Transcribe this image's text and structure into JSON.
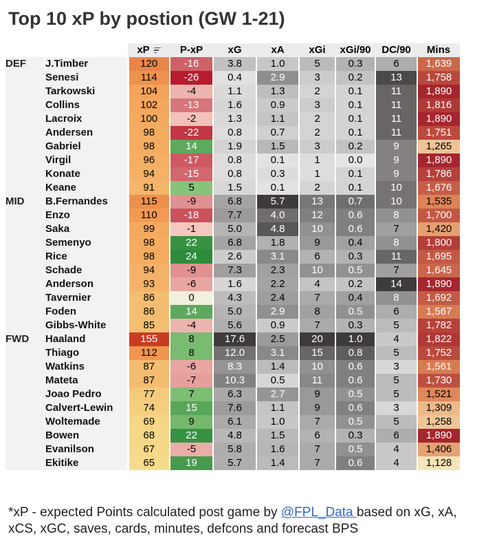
{
  "title": "Top 10 xP by postion (GW 1-21)",
  "chart_data": {
    "type": "table",
    "title": "Top 10 xP by postion (GW 1-21)",
    "columns": [
      "xP",
      "P-xP",
      "xG",
      "xA",
      "xGi",
      "xGi/90",
      "DC/90",
      "Mins"
    ],
    "sort_column": "xP",
    "groups": [
      {
        "position": "DEF",
        "players": [
          {
            "name": "J.Timber",
            "xp": "120",
            "pxp": "-16",
            "xg": "3.8",
            "xa": "1.0",
            "xgi": "5",
            "xgi90": "0.3",
            "dc90": "6",
            "mins": "1,639"
          },
          {
            "name": "Senesi",
            "xp": "114",
            "pxp": "-26",
            "xg": "0.4",
            "xa": "2.9",
            "xgi": "3",
            "xgi90": "0.2",
            "dc90": "13",
            "mins": "1,758"
          },
          {
            "name": "Tarkowski",
            "xp": "104",
            "pxp": "-4",
            "xg": "1.1",
            "xa": "1.3",
            "xgi": "2",
            "xgi90": "0.1",
            "dc90": "11",
            "mins": "1,890"
          },
          {
            "name": "Collins",
            "xp": "102",
            "pxp": "-13",
            "xg": "1.6",
            "xa": "0.9",
            "xgi": "3",
            "xgi90": "0.1",
            "dc90": "11",
            "mins": "1,816"
          },
          {
            "name": "Lacroix",
            "xp": "100",
            "pxp": "-2",
            "xg": "1.3",
            "xa": "1.1",
            "xgi": "2",
            "xgi90": "0.1",
            "dc90": "11",
            "mins": "1,890"
          },
          {
            "name": "Andersen",
            "xp": "98",
            "pxp": "-22",
            "xg": "0.8",
            "xa": "0.7",
            "xgi": "2",
            "xgi90": "0.1",
            "dc90": "11",
            "mins": "1,751"
          },
          {
            "name": "Gabriel",
            "xp": "98",
            "pxp": "14",
            "xg": "1.9",
            "xa": "1.5",
            "xgi": "3",
            "xgi90": "0.2",
            "dc90": "9",
            "mins": "1,265"
          },
          {
            "name": "Virgil",
            "xp": "96",
            "pxp": "-17",
            "xg": "0.8",
            "xa": "0.1",
            "xgi": "1",
            "xgi90": "0.0",
            "dc90": "9",
            "mins": "1,890"
          },
          {
            "name": "Konate",
            "xp": "94",
            "pxp": "-15",
            "xg": "0.8",
            "xa": "0.3",
            "xgi": "1",
            "xgi90": "0.1",
            "dc90": "9",
            "mins": "1,786"
          },
          {
            "name": "Keane",
            "xp": "91",
            "pxp": "5",
            "xg": "1.5",
            "xa": "0.1",
            "xgi": "2",
            "xgi90": "0.1",
            "dc90": "10",
            "mins": "1,676"
          }
        ]
      },
      {
        "position": "MID",
        "players": [
          {
            "name": "B.Fernandes",
            "xp": "115",
            "pxp": "-9",
            "xg": "6.8",
            "xa": "5.7",
            "xgi": "13",
            "xgi90": "0.7",
            "dc90": "10",
            "mins": "1,535"
          },
          {
            "name": "Enzo",
            "xp": "110",
            "pxp": "-18",
            "xg": "7.7",
            "xa": "4.0",
            "xgi": "12",
            "xgi90": "0.6",
            "dc90": "8",
            "mins": "1,700"
          },
          {
            "name": "Saka",
            "xp": "99",
            "pxp": "-1",
            "xg": "5.0",
            "xa": "4.8",
            "xgi": "10",
            "xgi90": "0.6",
            "dc90": "7",
            "mins": "1,420"
          },
          {
            "name": "Semenyo",
            "xp": "98",
            "pxp": "22",
            "xg": "6.8",
            "xa": "1.8",
            "xgi": "9",
            "xgi90": "0.4",
            "dc90": "8",
            "mins": "1,800"
          },
          {
            "name": "Rice",
            "xp": "98",
            "pxp": "24",
            "xg": "2.6",
            "xa": "3.1",
            "xgi": "6",
            "xgi90": "0.3",
            "dc90": "11",
            "mins": "1,695"
          },
          {
            "name": "Schade",
            "xp": "94",
            "pxp": "-9",
            "xg": "7.3",
            "xa": "2.3",
            "xgi": "10",
            "xgi90": "0.5",
            "dc90": "7",
            "mins": "1,645"
          },
          {
            "name": "Anderson",
            "xp": "93",
            "pxp": "-6",
            "xg": "1.6",
            "xa": "2.2",
            "xgi": "4",
            "xgi90": "0.2",
            "dc90": "14",
            "mins": "1,890"
          },
          {
            "name": "Tavernier",
            "xp": "86",
            "pxp": "0",
            "xg": "4.3",
            "xa": "2.4",
            "xgi": "7",
            "xgi90": "0.4",
            "dc90": "8",
            "mins": "1,692"
          },
          {
            "name": "Foden",
            "xp": "86",
            "pxp": "14",
            "xg": "5.0",
            "xa": "2.9",
            "xgi": "8",
            "xgi90": "0.5",
            "dc90": "6",
            "mins": "1,567"
          },
          {
            "name": "Gibbs-White",
            "xp": "85",
            "pxp": "-4",
            "xg": "5.6",
            "xa": "0.9",
            "xgi": "7",
            "xgi90": "0.3",
            "dc90": "5",
            "mins": "1,782"
          }
        ]
      },
      {
        "position": "FWD",
        "players": [
          {
            "name": "Haaland",
            "xp": "155",
            "pxp": "8",
            "xg": "17.6",
            "xa": "2.5",
            "xgi": "20",
            "xgi90": "1.0",
            "dc90": "4",
            "mins": "1,822"
          },
          {
            "name": "Thiago",
            "xp": "112",
            "pxp": "8",
            "xg": "12.0",
            "xa": "3.1",
            "xgi": "15",
            "xgi90": "0.8",
            "dc90": "5",
            "mins": "1,752"
          },
          {
            "name": "Watkins",
            "xp": "87",
            "pxp": "-6",
            "xg": "8.3",
            "xa": "1.4",
            "xgi": "10",
            "xgi90": "0.6",
            "dc90": "3",
            "mins": "1,561"
          },
          {
            "name": "Mateta",
            "xp": "87",
            "pxp": "-7",
            "xg": "10.3",
            "xa": "0.5",
            "xgi": "11",
            "xgi90": "0.6",
            "dc90": "5",
            "mins": "1,730"
          },
          {
            "name": "Joao Pedro",
            "xp": "77",
            "pxp": "7",
            "xg": "6.3",
            "xa": "2.7",
            "xgi": "9",
            "xgi90": "0.5",
            "dc90": "5",
            "mins": "1,521"
          },
          {
            "name": "Calvert-Lewin",
            "xp": "74",
            "pxp": "15",
            "xg": "7.6",
            "xa": "1.1",
            "xgi": "9",
            "xgi90": "0.6",
            "dc90": "3",
            "mins": "1,309"
          },
          {
            "name": "Woltemade",
            "xp": "69",
            "pxp": "9",
            "xg": "6.1",
            "xa": "1.0",
            "xgi": "7",
            "xgi90": "0.5",
            "dc90": "5",
            "mins": "1,258"
          },
          {
            "name": "Bowen",
            "xp": "68",
            "pxp": "22",
            "xg": "4.8",
            "xa": "1.5",
            "xgi": "6",
            "xgi90": "0.3",
            "dc90": "6",
            "mins": "1,890"
          },
          {
            "name": "Evanilson",
            "xp": "67",
            "pxp": "-5",
            "xg": "5.8",
            "xa": "1.6",
            "xgi": "7",
            "xgi90": "0.5",
            "dc90": "4",
            "mins": "1,406"
          },
          {
            "name": "Ekitike",
            "xp": "65",
            "pxp": "19",
            "xg": "5.7",
            "xa": "1.4",
            "xgi": "7",
            "xgi90": "0.6",
            "dc90": "4",
            "mins": "1,128"
          }
        ]
      }
    ]
  },
  "colors": {
    "xp_low": "#f5dc8c",
    "xp_mid": "#f39a52",
    "xp_high": "#c83c24",
    "pxp_neg_strong": "#b81b2e",
    "pxp_neg_light": "#f7cfc5",
    "pxp_zero": "#f2f0dc",
    "pxp_pos_light": "#9fd38a",
    "pxp_pos_strong": "#2e8b3c",
    "grey_low": "#e6e4e4",
    "grey_high": "#3f3b3b",
    "mins_low": "#f7e3b8",
    "mins_mid": "#e08a5a",
    "mins_high": "#a5262e",
    "link": "#3567c8"
  },
  "footnote": {
    "prefix": "*xP - expected Points calculated post game by ",
    "link": "@FPL_Data ",
    "suffix": "based on xG, xA, xCS, xGC, saves, cards, minutes, defcons and forecast BPS"
  }
}
